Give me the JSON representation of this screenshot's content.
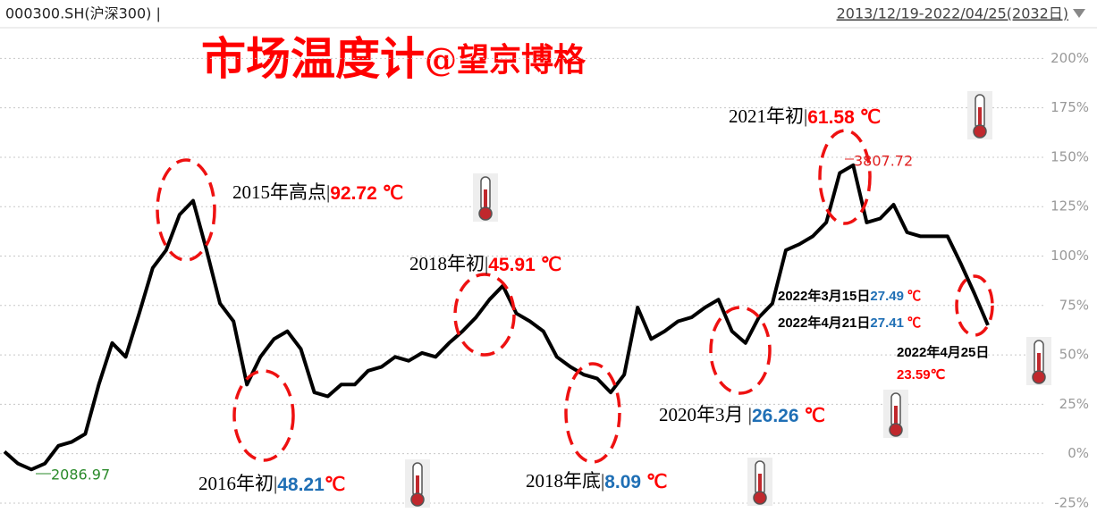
{
  "header": {
    "symbol": "000300.SH(沪深300) |",
    "range": "2013/12/19-2022/04/25(2032日)"
  },
  "chart_data": {
    "type": "line",
    "title": "市场温度计",
    "subtitle": "@望京博格",
    "categories": [
      null,
      null,
      null,
      null,
      null,
      null,
      null,
      null,
      null,
      null,
      null,
      null,
      null,
      null,
      null,
      null,
      null,
      null,
      null,
      null,
      null,
      null,
      null,
      null,
      null,
      null,
      null,
      null,
      null,
      null,
      null,
      null,
      null,
      null,
      null,
      null,
      null,
      null,
      null,
      null,
      null,
      null,
      null,
      null,
      null,
      null,
      null,
      null,
      null,
      null,
      null,
      null,
      null,
      null,
      null,
      null,
      null,
      null,
      null,
      null,
      null,
      null,
      null,
      null,
      null,
      null,
      null,
      null,
      null,
      null,
      null,
      null,
      null,
      null
    ],
    "series": [
      {
        "name": "000300.SH",
        "color": "#000000",
        "values": [
          1,
          -5,
          -8,
          -5,
          4,
          6,
          10,
          35,
          56,
          49,
          71,
          94,
          103,
          121,
          128,
          103,
          76,
          67,
          35,
          49,
          58,
          62,
          53,
          31,
          29,
          35,
          35,
          42,
          44,
          49,
          47,
          51,
          49,
          56,
          62,
          69,
          78,
          85,
          71,
          67,
          62,
          49,
          44,
          40,
          38,
          31,
          40,
          74,
          58,
          62,
          67,
          69,
          74,
          78,
          62,
          56,
          69,
          76,
          103,
          106,
          110,
          117,
          142,
          146,
          117,
          119,
          126,
          112,
          110,
          110,
          110,
          96,
          81,
          65
        ]
      }
    ],
    "ylim": [
      -30,
      216
    ],
    "yticks": [
      {
        "value": -25,
        "label": "-25%"
      },
      {
        "value": 0,
        "label": "0%"
      },
      {
        "value": 25,
        "label": "25%"
      },
      {
        "value": 50,
        "label": "50%"
      },
      {
        "value": 75,
        "label": "75%"
      },
      {
        "value": 100,
        "label": "100%"
      },
      {
        "value": 125,
        "label": "125%"
      },
      {
        "value": 150,
        "label": "150%"
      },
      {
        "value": 175,
        "label": "175%"
      },
      {
        "value": 200,
        "label": "200%"
      }
    ],
    "grid": true,
    "point_labels": [
      {
        "text": "3807.72",
        "color": "#e02020"
      },
      {
        "text": "2086.97",
        "color": "#2a8a2a"
      }
    ],
    "annotations": [
      {
        "parts": [
          {
            "text": "2015年高点|",
            "color": "#000000"
          },
          {
            "text": "92.72 ℃",
            "color": "#ff0000"
          }
        ]
      },
      {
        "parts": [
          {
            "text": "2016年初|",
            "color": "#000000"
          },
          {
            "text": "48.21",
            "color": "#1f6fb5"
          },
          {
            "text": "℃",
            "color": "#ff0000"
          }
        ]
      },
      {
        "parts": [
          {
            "text": "2018年初|",
            "color": "#000000"
          },
          {
            "text": "45.91 ℃",
            "color": "#ff0000"
          }
        ]
      },
      {
        "parts": [
          {
            "text": "2018年底|",
            "color": "#000000"
          },
          {
            "text": "8.09",
            "color": "#1f6fb5"
          },
          {
            "text": " ℃",
            "color": "#ff0000"
          }
        ]
      },
      {
        "parts": [
          {
            "text": "2020年3月 |",
            "color": "#000000"
          },
          {
            "text": "26.26",
            "color": "#1f6fb5"
          },
          {
            "text": " ℃",
            "color": "#ff0000"
          }
        ]
      },
      {
        "parts": [
          {
            "text": "2021年初|",
            "color": "#000000"
          },
          {
            "text": "61.58 ℃",
            "color": "#ff0000"
          }
        ]
      },
      {
        "parts": [
          {
            "text": "2022年3月15日",
            "color": "#000000"
          },
          {
            "text": "27.49",
            "color": "#1f6fb5"
          },
          {
            "text": " ℃",
            "color": "#ff0000"
          }
        ]
      },
      {
        "parts": [
          {
            "text": "2022年4月21日",
            "color": "#000000"
          },
          {
            "text": "27.41",
            "color": "#1f6fb5"
          },
          {
            "text": " ℃",
            "color": "#ff0000"
          }
        ]
      },
      {
        "parts": [
          {
            "text": "2022年4月25日",
            "color": "#000000"
          }
        ]
      },
      {
        "parts": [
          {
            "text": "23.59℃",
            "color": "#ff0000"
          }
        ]
      }
    ]
  }
}
